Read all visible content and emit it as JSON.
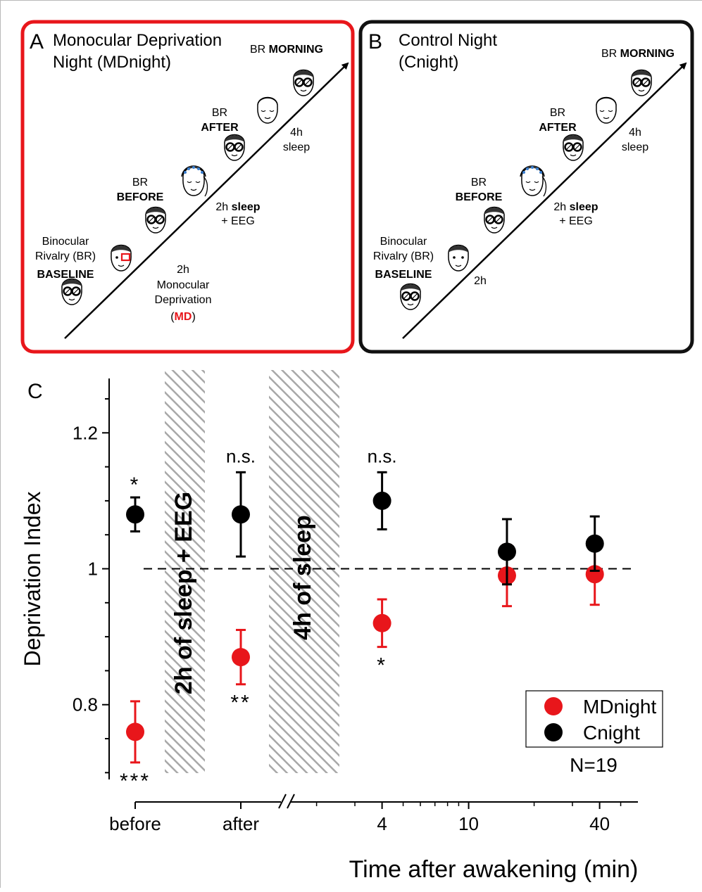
{
  "panel_a": {
    "letter": "A",
    "title_line1": "Monocular Deprivation",
    "title_line2": "Night (MDnight)",
    "border_color": "#e8161b",
    "labels": {
      "morning_prefix": "BR ",
      "morning_bold": "MORNING",
      "after_br": "BR",
      "after_bold": "AFTER",
      "before_br": "BR",
      "before_bold": "BEFORE",
      "baseline_line1": "Binocular",
      "baseline_line2": "Rivalry (BR)",
      "baseline_bold": "BASELINE",
      "sleep4_line1": "4h",
      "sleep4_line2": "sleep",
      "sleep2_prefix": "2h ",
      "sleep2_bold": "sleep",
      "sleep2_line2": "+ EEG",
      "md_line1": "2h",
      "md_line2": "Monocular",
      "md_line3": "Deprivation",
      "md_open": "(",
      "md_bold": "MD",
      "md_close": ")"
    }
  },
  "panel_b": {
    "letter": "B",
    "title_line1": "Control Night",
    "title_line2": "(Cnight)",
    "border_color": "#111111",
    "labels": {
      "morning_prefix": "BR ",
      "morning_bold": "MORNING",
      "after_br": "BR",
      "after_bold": "AFTER",
      "before_br": "BR",
      "before_bold": "BEFORE",
      "baseline_line1": "Binocular",
      "baseline_line2": "Rivalry (BR)",
      "baseline_bold": "BASELINE",
      "sleep4_line1": "4h",
      "sleep4_line2": "sleep",
      "sleep2_prefix": "2h ",
      "sleep2_bold": "sleep",
      "sleep2_line2": "+ EEG",
      "h2": "2h"
    }
  },
  "colors": {
    "md": "#e8161b",
    "control": "#000000",
    "hatch": "#a8a8a8"
  },
  "chart_data": {
    "type": "scatter",
    "panel_letter": "C",
    "title": "",
    "ylabel": "Deprivation Index",
    "xlabel": "Time after awakening (min)",
    "ylim": [
      0.69,
      1.28
    ],
    "yticks": [
      0.8,
      1.0,
      1.2
    ],
    "ytick_labels": [
      "0.8",
      "1",
      "1.2"
    ],
    "reference_line": 1.0,
    "x_axis": {
      "categorical": [
        "before",
        "after"
      ],
      "log_scale_min": [
        4,
        10,
        40
      ],
      "log_range": [
        1.5,
        60
      ],
      "log_minor_ticks": [
        2,
        3,
        5,
        6,
        7,
        8,
        9,
        20,
        30,
        50
      ]
    },
    "shaded_regions": [
      {
        "label": "2h of sleep + EEG",
        "between": [
          "before",
          "after"
        ]
      },
      {
        "label": "4h of sleep",
        "between": [
          "after",
          "4"
        ]
      }
    ],
    "series": [
      {
        "name": "MDnight",
        "color": "#e8161b",
        "points": [
          {
            "x": "before",
            "y": 0.76,
            "err": 0.045,
            "annotation": "***",
            "annotation_pos": "below"
          },
          {
            "x": "after",
            "y": 0.87,
            "err": 0.04,
            "annotation": "**",
            "annotation_pos": "below"
          },
          {
            "x": 4,
            "y": 0.92,
            "err": 0.035,
            "annotation": "*",
            "annotation_pos": "below"
          },
          {
            "x": 15,
            "y": 0.99,
            "err": 0.045,
            "annotation": "",
            "annotation_pos": ""
          },
          {
            "x": 38,
            "y": 0.992,
            "err": 0.045,
            "annotation": "",
            "annotation_pos": ""
          }
        ]
      },
      {
        "name": "Cnight",
        "color": "#000000",
        "points": [
          {
            "x": "before",
            "y": 1.08,
            "err": 0.025,
            "annotation": "*",
            "annotation_pos": "above"
          },
          {
            "x": "after",
            "y": 1.08,
            "err": 0.062,
            "annotation": "n.s.",
            "annotation_pos": "above"
          },
          {
            "x": 4,
            "y": 1.1,
            "err": 0.042,
            "annotation": "n.s.",
            "annotation_pos": "above"
          },
          {
            "x": 15,
            "y": 1.025,
            "err": 0.048,
            "annotation": "",
            "annotation_pos": ""
          },
          {
            "x": 38,
            "y": 1.037,
            "err": 0.04,
            "annotation": "",
            "annotation_pos": ""
          }
        ]
      }
    ],
    "legend": {
      "entries": [
        "MDnight",
        "Cnight"
      ],
      "placement": "bottom-right"
    },
    "n_label": "N=19"
  }
}
